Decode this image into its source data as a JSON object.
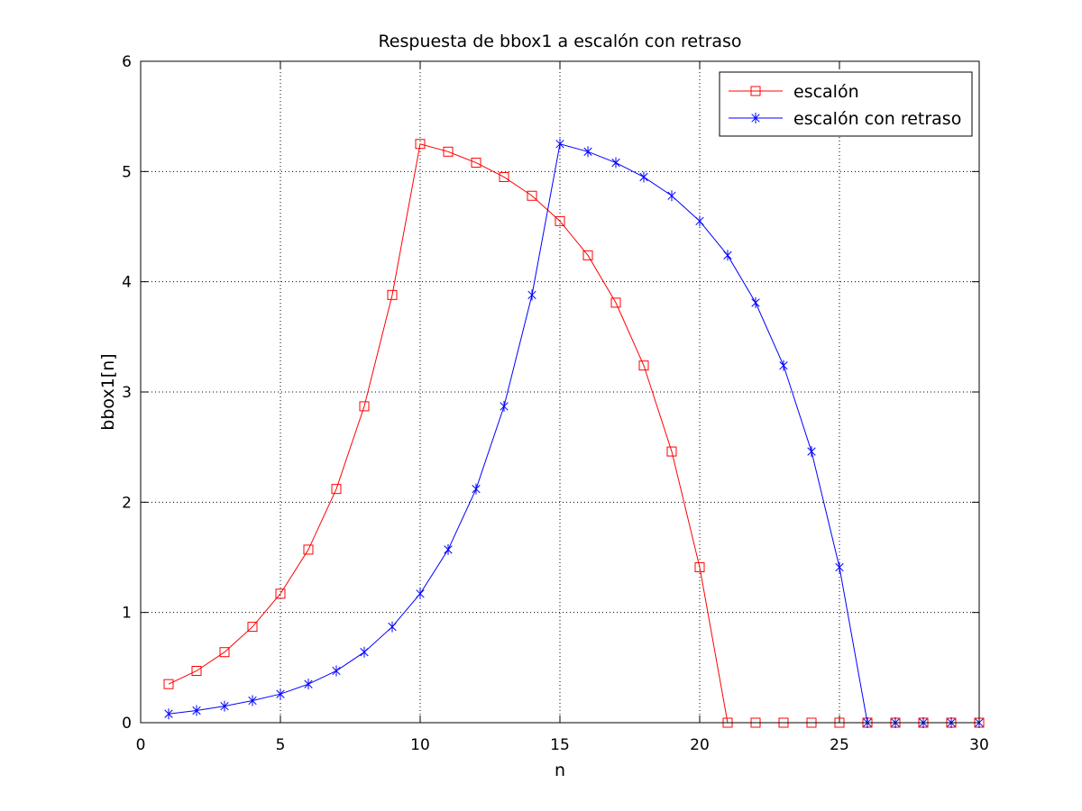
{
  "chart_data": {
    "type": "line",
    "title": "Respuesta de bbox1 a escalón con retraso",
    "xlabel": "n",
    "ylabel": "bbox1[n]",
    "xlim": [
      0,
      30
    ],
    "ylim": [
      0,
      6
    ],
    "xticks": [
      0,
      5,
      10,
      15,
      20,
      25,
      30
    ],
    "yticks": [
      0,
      1,
      2,
      3,
      4,
      5,
      6
    ],
    "grid": true,
    "legend_position": "top-right",
    "x": [
      1,
      2,
      3,
      4,
      5,
      6,
      7,
      8,
      9,
      10,
      11,
      12,
      13,
      14,
      15,
      16,
      17,
      18,
      19,
      20,
      21,
      22,
      23,
      24,
      25,
      26,
      27,
      28,
      29,
      30
    ],
    "series": [
      {
        "name": "escalón",
        "color": "#ff0000",
        "marker": "square",
        "values": [
          0.35,
          0.47,
          0.64,
          0.87,
          1.17,
          1.57,
          2.12,
          2.87,
          3.88,
          5.25,
          5.18,
          5.08,
          4.95,
          4.78,
          4.55,
          4.24,
          3.81,
          3.24,
          2.46,
          1.41,
          0,
          0,
          0,
          0,
          0,
          0,
          0,
          0,
          0,
          0
        ]
      },
      {
        "name": "escalón con retraso",
        "color": "#0000ff",
        "marker": "asterisk",
        "values": [
          0.08,
          0.11,
          0.15,
          0.2,
          0.26,
          0.35,
          0.47,
          0.64,
          0.87,
          1.17,
          1.57,
          2.12,
          2.87,
          3.88,
          5.25,
          5.18,
          5.08,
          4.95,
          4.78,
          4.55,
          4.24,
          3.81,
          3.24,
          2.46,
          1.41,
          0,
          0,
          0,
          0,
          0
        ]
      }
    ]
  }
}
